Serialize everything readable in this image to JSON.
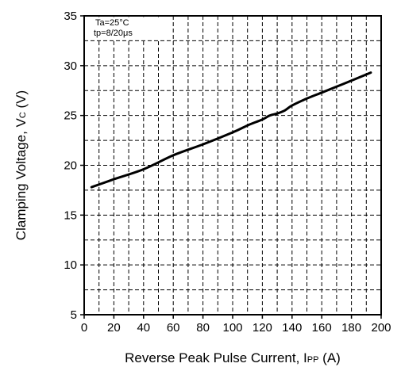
{
  "chart_data": {
    "type": "line",
    "xlabel": {
      "main": "Reverse Peak Pulse Current, I",
      "sub": "PP",
      "tail": " (A)"
    },
    "ylabel": {
      "main": "Clamping Voltage, V",
      "sub": "C",
      "tail": " (V)"
    },
    "xlim": [
      0,
      200
    ],
    "ylim": [
      5,
      35
    ],
    "xticks": [
      0,
      20,
      40,
      60,
      80,
      100,
      120,
      140,
      160,
      180,
      200
    ],
    "yticks": [
      5,
      10,
      15,
      20,
      25,
      30,
      35
    ],
    "xtick_labels": [
      "0",
      "20",
      "40",
      "60",
      "80",
      "100",
      "120",
      "140",
      "160",
      "180",
      "200"
    ],
    "ytick_labels": [
      "5",
      "10",
      "15",
      "20",
      "25",
      "30",
      "35"
    ],
    "grid": "dashed",
    "annotation": [
      "Ta=25°C",
      "tp=8/20μs"
    ],
    "series": [
      {
        "x": [
          5,
          20,
          40,
          60,
          80,
          100,
          110,
          120,
          125,
          130,
          135,
          140,
          150,
          160,
          175,
          193
        ],
        "y": [
          17.8,
          18.6,
          19.6,
          21.0,
          22.1,
          23.3,
          24.0,
          24.6,
          25.0,
          25.2,
          25.5,
          26.0,
          26.7,
          27.3,
          28.2,
          29.3
        ]
      }
    ]
  }
}
